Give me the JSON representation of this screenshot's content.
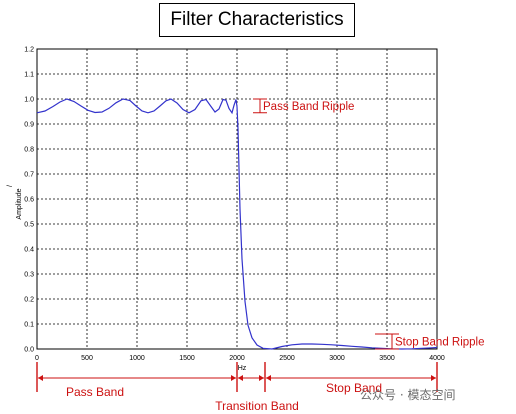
{
  "chart_data": {
    "type": "line",
    "title": "Filter Characteristics",
    "xlabel": "Hz",
    "ylabel": "Amplitude",
    "ylabel_top": "/",
    "xlim": [
      0,
      4000
    ],
    "ylim": [
      0,
      1.2
    ],
    "x_ticks": [
      "0",
      "500",
      "1000",
      "1500",
      "2000",
      "2500",
      "3000",
      "3500",
      "4000"
    ],
    "y_ticks": [
      "0.0",
      "0.1",
      "0.2",
      "0.3",
      "0.4",
      "0.5",
      "0.6",
      "0.7",
      "0.8",
      "0.9",
      "1.0",
      "1.1",
      "1.2"
    ],
    "grid": true,
    "series": [
      {
        "color": "#3333cc",
        "x": [
          0,
          80,
          160,
          230,
          300,
          370,
          440,
          510,
          580,
          650,
          720,
          790,
          860,
          930,
          990,
          1050,
          1110,
          1170,
          1230,
          1290,
          1340,
          1400,
          1460,
          1520,
          1580,
          1640,
          1690,
          1740,
          1780,
          1820,
          1860,
          1890,
          1920,
          1950,
          1970,
          1990,
          2000,
          2010,
          2020,
          2030,
          2050,
          2080,
          2110,
          2150,
          2200,
          2260,
          2350,
          2450,
          2550,
          2650,
          2750,
          2850,
          2950,
          3050,
          3150,
          3250,
          3350,
          3450,
          3550,
          3650,
          3750,
          3850,
          3950,
          4000
        ],
        "y": [
          0.945,
          0.952,
          0.97,
          0.988,
          1.0,
          0.99,
          0.972,
          0.955,
          0.946,
          0.948,
          0.963,
          0.985,
          1.0,
          0.994,
          0.972,
          0.952,
          0.945,
          0.952,
          0.972,
          0.993,
          1.0,
          0.984,
          0.958,
          0.945,
          0.958,
          0.993,
          0.998,
          0.97,
          0.948,
          0.96,
          0.998,
          0.995,
          0.962,
          0.945,
          0.975,
          0.998,
          0.97,
          0.88,
          0.72,
          0.56,
          0.36,
          0.19,
          0.095,
          0.045,
          0.016,
          0.003,
          0.0,
          0.01,
          0.017,
          0.02,
          0.02,
          0.019,
          0.017,
          0.014,
          0.011,
          0.008,
          0.005,
          0.003,
          0.001,
          0.0,
          0.001,
          0.003,
          0.005,
          0.006
        ]
      }
    ],
    "annotations": [
      {
        "text": "Pass Band Ripple",
        "y_from": 0.945,
        "y_to": 1.0,
        "x": 2230
      },
      {
        "text": "Stop Band Ripple",
        "y_from": 0.0,
        "y_to": 0.06,
        "x": 3500
      },
      {
        "text": "Pass Band",
        "x_from": 0,
        "x_to": 2000,
        "x_label": 580
      },
      {
        "text": "Transition Band",
        "x_from": 2000,
        "x_to": 2280,
        "x_label": 2200
      },
      {
        "text": "Stop Band",
        "x_from": 2280,
        "x_to": 4000,
        "x_label": 3170
      }
    ],
    "annotation_color": "#cc1111"
  },
  "watermark": "公众号 · 模态空间"
}
